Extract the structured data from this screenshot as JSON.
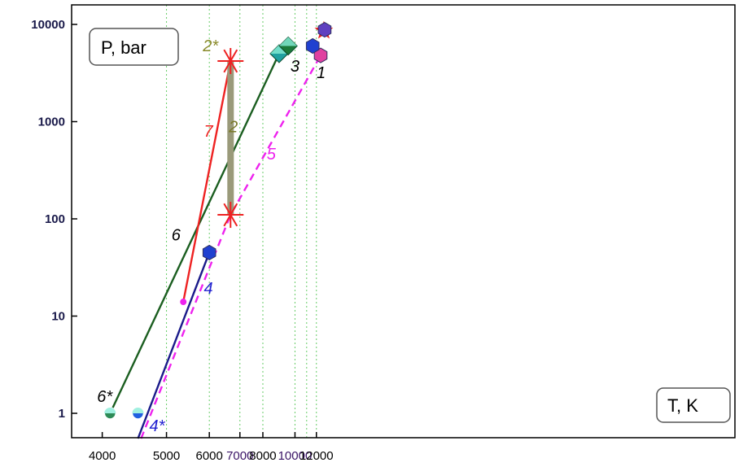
{
  "chart_data": {
    "type": "line",
    "title": "",
    "xlabel": "T, K",
    "ylabel": "P, bar",
    "x_scale": "reciprocal",
    "y_scale": "log",
    "xlim": [
      4000,
      14000
    ],
    "ylim": [
      0.5,
      13000
    ],
    "grid": "vertical dotted green at x tick positions",
    "x_ticks": [
      4000,
      5000,
      6000,
      7000,
      8000,
      10000,
      12000
    ],
    "y_ticks": [
      1,
      10,
      100,
      1000,
      10000
    ],
    "x_tick_labels": [
      "4000",
      "5000",
      "6000",
      "7000",
      "8000",
      "10000",
      "12000"
    ],
    "y_tick_labels": [
      "1",
      "10",
      "100",
      "1000",
      "10000"
    ],
    "series": [
      {
        "name": "6",
        "color": "#1b5e20",
        "style": "solid",
        "points": [
          [
            4100,
            1.0
          ],
          [
            8900,
            5000
          ]
        ]
      },
      {
        "name": "5",
        "color": "#ee22ee",
        "style": "dashed",
        "points": [
          [
            4550,
            0.55
          ],
          [
            6660,
            110
          ],
          [
            12500,
            4800
          ]
        ]
      },
      {
        "name": "4",
        "color": "#1a1a8a",
        "style": "solid",
        "points": [
          [
            4500,
            0.55
          ],
          [
            6000,
            45
          ]
        ]
      },
      {
        "name": "7",
        "color": "#ee2222",
        "style": "solid",
        "points": [
          [
            5350,
            14
          ],
          [
            6660,
            4200
          ]
        ]
      },
      {
        "name": "2",
        "color": "#9a9a7a",
        "style": "thick",
        "points": [
          [
            6660,
            110
          ],
          [
            6660,
            4200
          ]
        ]
      }
    ],
    "markers": [
      {
        "label": "6*",
        "x": 4100,
        "y": 1.0,
        "shape": "circle",
        "color": "#2e8b57"
      },
      {
        "label": "4*",
        "x": 4500,
        "y": 1.0,
        "shape": "circle",
        "color": "#2060e0"
      },
      {
        "label": "",
        "x": 6000,
        "y": 45,
        "shape": "hexagon",
        "color": "#2040d0"
      },
      {
        "label": "",
        "x": 5350,
        "y": 14,
        "shape": "dot",
        "color": "#ee22ee"
      },
      {
        "label": "2*",
        "x": 6660,
        "y": 4200,
        "shape": "asterisk",
        "color": "#ee2222"
      },
      {
        "label": "",
        "x": 6660,
        "y": 110,
        "shape": "asterisk",
        "color": "#ee2222"
      },
      {
        "label": "3",
        "x": 8900,
        "y": 5000,
        "shape": "diamond",
        "color": "#20a0a0"
      },
      {
        "label": "",
        "x": 9500,
        "y": 6000,
        "shape": "diamond",
        "color": "#1b7a3a"
      },
      {
        "label": "1",
        "x": 12500,
        "y": 4800,
        "shape": "hexagon",
        "color": "#e040a0"
      },
      {
        "label": "",
        "x": 11600,
        "y": 6000,
        "shape": "hexagon",
        "color": "#2040d0"
      },
      {
        "label": "",
        "x": 12900,
        "y": 8600,
        "shape": "star",
        "color": "#ee2222"
      },
      {
        "label": "",
        "x": 13000,
        "y": 8800,
        "shape": "hexagon",
        "color": "#6040c0"
      }
    ],
    "annotations": [
      {
        "text": "6",
        "x": 5100,
        "y": 60,
        "color": "#000000"
      },
      {
        "text": "4",
        "x": 5850,
        "y": 17,
        "color": "#2020d0"
      },
      {
        "text": "5",
        "x": 8200,
        "y": 410,
        "color": "#ee22ee"
      },
      {
        "text": "7",
        "x": 5850,
        "y": 700,
        "color": "#ee2222"
      },
      {
        "text": "2",
        "x": 6600,
        "y": 780,
        "color": "#7a7a2a"
      }
    ],
    "legend": "none",
    "axis_label_boxes": {
      "y": "top-left",
      "x": "bottom-right"
    }
  }
}
